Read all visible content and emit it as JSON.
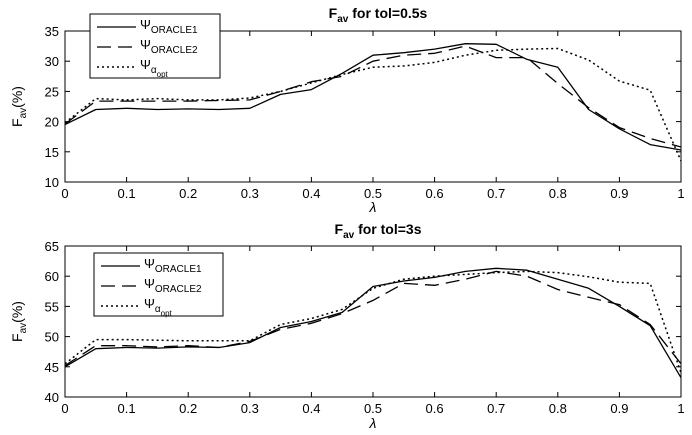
{
  "chart_data": [
    {
      "type": "line",
      "title": {
        "main": "F",
        "sub": "av",
        "rest": " for tol=0.5s"
      },
      "ylabel": {
        "main": "F",
        "sub": "av",
        "rest": "(%)"
      },
      "xlabel": "λ",
      "xlim": [
        0,
        1
      ],
      "ylim": [
        10,
        35
      ],
      "xticks": [
        "0",
        "0.1",
        "0.2",
        "0.3",
        "0.4",
        "0.5",
        "0.6",
        "0.7",
        "0.8",
        "0.9",
        "1"
      ],
      "yticks": [
        "10",
        "15",
        "20",
        "25",
        "30",
        "35"
      ],
      "legend_position": "top-left",
      "x": [
        0,
        0.05,
        0.1,
        0.15,
        0.2,
        0.25,
        0.3,
        0.35,
        0.4,
        0.45,
        0.5,
        0.55,
        0.6,
        0.65,
        0.7,
        0.75,
        0.8,
        0.85,
        0.9,
        0.95,
        1.0
      ],
      "series": [
        {
          "legend": {
            "sym": "Ψ",
            "sub": "ORACLE1"
          },
          "style": "solid",
          "values": [
            19.5,
            22.0,
            22.2,
            22.0,
            22.1,
            22.0,
            22.2,
            24.5,
            25.3,
            28.0,
            31.0,
            31.4,
            32.0,
            32.9,
            32.8,
            30.3,
            29.0,
            22.0,
            18.8,
            16.2,
            15.3
          ]
        },
        {
          "legend": {
            "sym": "Ψ",
            "sub": "ORACLE2"
          },
          "style": "dashed",
          "values": [
            19.6,
            23.4,
            23.4,
            23.4,
            23.4,
            23.5,
            23.6,
            25.0,
            26.6,
            27.5,
            30.0,
            31.0,
            31.3,
            32.5,
            30.6,
            30.6,
            26.3,
            22.3,
            19.0,
            17.2,
            15.8
          ]
        },
        {
          "legend": {
            "sym": "Ψ",
            "sub": "α",
            "subsub": "opt"
          },
          "style": "dotted",
          "values": [
            19.8,
            23.8,
            23.6,
            23.8,
            23.6,
            23.6,
            23.9,
            25.0,
            26.4,
            27.8,
            29.0,
            29.2,
            29.8,
            31.0,
            31.8,
            32.0,
            32.1,
            30.2,
            26.7,
            25.2,
            13.5
          ]
        }
      ]
    },
    {
      "type": "line",
      "title": {
        "main": "F",
        "sub": "av",
        "rest": " for tol=3s"
      },
      "ylabel": {
        "main": "F",
        "sub": "av",
        "rest": "(%)"
      },
      "xlabel": "λ",
      "xlim": [
        0,
        1
      ],
      "ylim": [
        40,
        65
      ],
      "xticks": [
        "0",
        "0.1",
        "0.2",
        "0.3",
        "0.4",
        "0.5",
        "0.6",
        "0.7",
        "0.8",
        "0.9",
        "1"
      ],
      "yticks": [
        "40",
        "45",
        "50",
        "55",
        "60",
        "65"
      ],
      "legend_position": "top-left",
      "x": [
        0,
        0.05,
        0.1,
        0.15,
        0.2,
        0.25,
        0.3,
        0.35,
        0.4,
        0.45,
        0.5,
        0.55,
        0.6,
        0.65,
        0.7,
        0.75,
        0.8,
        0.85,
        0.9,
        0.95,
        1.0
      ],
      "series": [
        {
          "legend": {
            "sym": "Ψ",
            "sub": "ORACLE1"
          },
          "style": "solid",
          "values": [
            45.0,
            48.0,
            48.2,
            48.1,
            48.3,
            48.2,
            49.0,
            51.5,
            52.5,
            54.0,
            58.3,
            59.2,
            59.8,
            60.8,
            61.3,
            61.0,
            59.5,
            58.0,
            55.0,
            51.8,
            43.2
          ]
        },
        {
          "legend": {
            "sym": "Ψ",
            "sub": "ORACLE2"
          },
          "style": "dashed",
          "values": [
            45.2,
            48.5,
            48.5,
            48.3,
            48.5,
            48.2,
            49.2,
            51.2,
            52.2,
            53.8,
            56.0,
            58.8,
            58.5,
            59.5,
            60.8,
            60.0,
            57.8,
            56.5,
            55.3,
            52.0,
            45.5
          ]
        },
        {
          "legend": {
            "sym": "Ψ",
            "sub": "α",
            "subsub": "opt"
          },
          "style": "dotted",
          "values": [
            45.5,
            49.5,
            49.5,
            49.4,
            49.3,
            49.3,
            49.3,
            52.0,
            53.0,
            54.5,
            58.0,
            59.5,
            60.0,
            60.3,
            60.6,
            60.8,
            60.6,
            59.9,
            59.0,
            58.8,
            44.0
          ]
        }
      ]
    }
  ]
}
